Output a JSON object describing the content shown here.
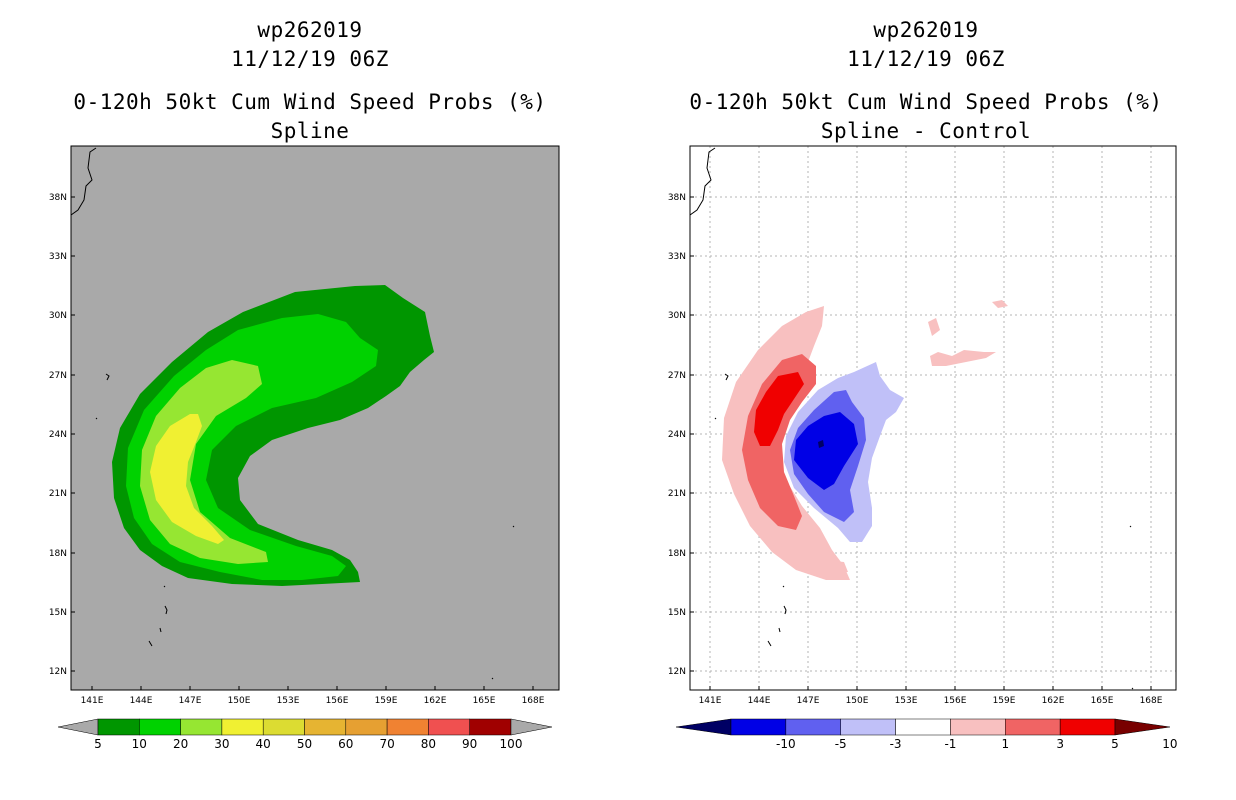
{
  "left_panel": {
    "title_line1": "wp262019",
    "title_line2": "11/12/19 06Z",
    "title_line3": "0-120h 50kt Cum Wind Speed Probs (%)",
    "title_line4": "Spline"
  },
  "right_panel": {
    "title_line1": "wp262019",
    "title_line2": "11/12/19 06Z",
    "title_line3": "0-120h 50kt Cum Wind Speed Probs (%)",
    "title_line4": "Spline - Control"
  },
  "colors": {
    "land_sea_background": "#a9a9a9",
    "prob_5": "#009600",
    "prob_10": "#00d200",
    "prob_20": "#96e632",
    "prob_30": "#f0f032",
    "diff_pos_1": "#f8c0c0",
    "diff_pos_3": "#f06464",
    "diff_pos_5": "#f00000",
    "diff_neg_1": "#c0c0f8",
    "diff_neg_3": "#6060f0",
    "diff_neg_5": "#0000e6",
    "diff_neg_10": "#000064"
  },
  "chart_data": [
    {
      "type": "contour_map",
      "title": "0-120h 50kt Cum Wind Speed Probs (%) — Spline",
      "x_ticks": [
        "141E",
        "144E",
        "147E",
        "150E",
        "153E",
        "156E",
        "159E",
        "162E",
        "165E",
        "168E"
      ],
      "y_ticks": [
        "38N",
        "33N",
        "30N",
        "27N",
        "24N",
        "21N",
        "18N",
        "15N",
        "12N"
      ],
      "xlim_lon": [
        140,
        170
      ],
      "ylim_lat": [
        11,
        38.5
      ],
      "grid": false,
      "colorbar": {
        "labels": [
          "5",
          "10",
          "20",
          "30",
          "40",
          "50",
          "60",
          "70",
          "80",
          "90",
          "100"
        ],
        "colors": [
          "#009600",
          "#00d200",
          "#96e632",
          "#f0f032",
          "#dcdc32",
          "#e6b432",
          "#e6a032",
          "#f08232",
          "#f05050",
          "#a00000",
          "#8200dc"
        ]
      }
    },
    {
      "type": "contour_map",
      "title": "0-120h 50kt Cum Wind Speed Probs (%) — Spline - Control",
      "x_ticks": [
        "141E",
        "144E",
        "147E",
        "150E",
        "153E",
        "156E",
        "159E",
        "162E",
        "165E",
        "168E"
      ],
      "y_ticks": [
        "38N",
        "33N",
        "30N",
        "27N",
        "24N",
        "21N",
        "18N",
        "15N",
        "12N"
      ],
      "xlim_lon": [
        140,
        170
      ],
      "ylim_lat": [
        11,
        38.5
      ],
      "grid": true,
      "colorbar": {
        "labels": [
          "-10",
          "-5",
          "-3",
          "-1",
          "1",
          "3",
          "5",
          "10"
        ],
        "colors": [
          "#000064",
          "#0000e6",
          "#6060f0",
          "#c0c0f8",
          "#ffffff",
          "#f8c0c0",
          "#f06464",
          "#f00000",
          "#780000"
        ]
      }
    }
  ]
}
